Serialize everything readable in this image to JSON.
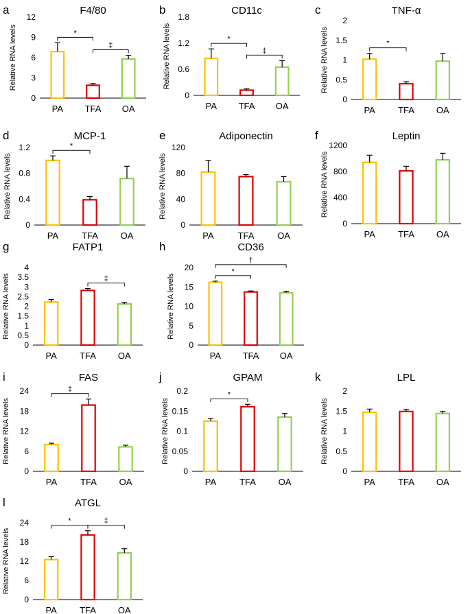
{
  "figure": {
    "ylabel": "Relative RNA levels"
  },
  "colors": {
    "PA": "#FFC000",
    "TFA": "#E00000",
    "OA": "#92D050",
    "axis": "#000000"
  },
  "chart_data": [
    {
      "letter": "a",
      "title": "F4/80",
      "type": "bar",
      "categories": [
        "PA",
        "TFA",
        "OA"
      ],
      "values": [
        6.9,
        1.9,
        5.8
      ],
      "errors": [
        1.3,
        0.25,
        0.55
      ],
      "ylim": [
        0,
        12
      ],
      "yticks": [
        "0",
        "3",
        "6",
        "9",
        "12"
      ],
      "ylabel": "Relative RNA levels",
      "annotations": [
        {
          "from": 0,
          "to": 1,
          "symbol": "*"
        },
        {
          "from": 1,
          "to": 2,
          "symbol": "‡"
        }
      ]
    },
    {
      "letter": "b",
      "title": "CD11c",
      "type": "bar",
      "categories": [
        "PA",
        "TFA",
        "OA"
      ],
      "values": [
        0.85,
        0.12,
        0.65
      ],
      "errors": [
        0.22,
        0.03,
        0.15
      ],
      "ylim": [
        0,
        1.8
      ],
      "yticks": [
        "0",
        "0.6",
        "1.2",
        "1.8"
      ],
      "ylabel": "Relative RNA levels",
      "annotations": [
        {
          "from": 0,
          "to": 1,
          "symbol": "*"
        },
        {
          "from": 1,
          "to": 2,
          "symbol": "‡"
        }
      ]
    },
    {
      "letter": "c",
      "title": "TNF-α",
      "type": "bar",
      "categories": [
        "PA",
        "TFA",
        "OA"
      ],
      "values": [
        1.02,
        0.4,
        0.97
      ],
      "errors": [
        0.15,
        0.05,
        0.2
      ],
      "ylim": [
        0,
        2
      ],
      "yticks": [
        "0",
        "0.5",
        "1",
        "1.5",
        "2"
      ],
      "ylabel": "Relative RNA levels",
      "annotations": [
        {
          "from": 0,
          "to": 1,
          "symbol": "*"
        }
      ]
    },
    {
      "letter": "d",
      "title": "MCP-1",
      "type": "bar",
      "categories": [
        "PA",
        "TFA",
        "OA"
      ],
      "values": [
        1.0,
        0.39,
        0.72
      ],
      "errors": [
        0.07,
        0.05,
        0.19
      ],
      "ylim": [
        0,
        1.2
      ],
      "yticks": [
        "0",
        "0.4",
        "0.8",
        "1.2"
      ],
      "ylabel": "Relative RNA levels",
      "annotations": [
        {
          "from": 0,
          "to": 1,
          "symbol": "*"
        }
      ]
    },
    {
      "letter": "e",
      "title": "Adiponectin",
      "type": "bar",
      "categories": [
        "PA",
        "TFA",
        "OA"
      ],
      "values": [
        82,
        75,
        67
      ],
      "errors": [
        18,
        3,
        8
      ],
      "ylim": [
        0,
        120
      ],
      "yticks": [
        "0",
        "40",
        "80",
        "120"
      ],
      "ylabel": "Relative RNA levels",
      "annotations": []
    },
    {
      "letter": "f",
      "title": "Leptin",
      "type": "bar",
      "categories": [
        "PA",
        "TFA",
        "OA"
      ],
      "values": [
        940,
        810,
        980
      ],
      "errors": [
        110,
        70,
        100
      ],
      "ylim": [
        0,
        1200
      ],
      "yticks": [
        "0",
        "400",
        "800",
        "1200"
      ],
      "ylabel": "Relative RNA levels",
      "annotations": []
    },
    {
      "letter": "g",
      "title": "FATP1",
      "type": "bar",
      "categories": [
        "PA",
        "TFA",
        "OA"
      ],
      "values": [
        2.22,
        2.82,
        2.12
      ],
      "errors": [
        0.13,
        0.1,
        0.08
      ],
      "ylim": [
        0,
        4
      ],
      "yticks": [
        "0",
        "0.5",
        "1",
        "1.5",
        "2",
        "2.5",
        "3",
        "3.5",
        "4"
      ],
      "ylabel": "Relative RNA levels",
      "annotations": [
        {
          "from": 1,
          "to": 2,
          "symbol": "‡"
        }
      ]
    },
    {
      "letter": "h",
      "title": "CD36",
      "type": "bar",
      "categories": [
        "PA",
        "TFA",
        "OA"
      ],
      "values": [
        16.2,
        13.7,
        13.5
      ],
      "errors": [
        0.3,
        0.25,
        0.35
      ],
      "ylim": [
        0,
        20
      ],
      "yticks": [
        "0",
        "5",
        "10",
        "15",
        "20"
      ],
      "ylabel": "Relative RNA levels",
      "annotations": [
        {
          "from": 0,
          "to": 1,
          "symbol": "*"
        },
        {
          "from": 0,
          "to": 2,
          "symbol": "†",
          "level": 2
        }
      ]
    },
    {
      "letter": "i",
      "title": "FAS",
      "type": "bar",
      "categories": [
        "PA",
        "TFA",
        "OA"
      ],
      "values": [
        8.0,
        19.8,
        7.3
      ],
      "errors": [
        0.4,
        1.8,
        0.5
      ],
      "ylim": [
        0,
        24
      ],
      "yticks": [
        "0",
        "6",
        "12",
        "18",
        "24"
      ],
      "ylabel": "Relative RNA levels",
      "annotations": [
        {
          "from": 0,
          "to": 1,
          "symbol": "‡"
        }
      ]
    },
    {
      "letter": "j",
      "title": "GPAM",
      "type": "bar",
      "categories": [
        "PA",
        "TFA",
        "OA"
      ],
      "values": [
        0.125,
        0.161,
        0.135
      ],
      "errors": [
        0.007,
        0.006,
        0.009
      ],
      "ylim": [
        0,
        0.2
      ],
      "yticks": [
        "0",
        "0.05",
        "0.1",
        "0.15",
        "0.2"
      ],
      "ylabel": "Relative RNA levels",
      "annotations": [
        {
          "from": 0,
          "to": 1,
          "symbol": "*"
        }
      ]
    },
    {
      "letter": "k",
      "title": "LPL",
      "type": "bar",
      "categories": [
        "PA",
        "TFA",
        "OA"
      ],
      "values": [
        1.47,
        1.49,
        1.44
      ],
      "errors": [
        0.08,
        0.05,
        0.05
      ],
      "ylim": [
        0,
        2
      ],
      "yticks": [
        "0",
        "0.5",
        "1",
        "1.5",
        "2"
      ],
      "ylabel": "Relative RNA levels",
      "annotations": []
    },
    {
      "letter": "l",
      "title": "ATGL",
      "type": "bar",
      "categories": [
        "PA",
        "TFA",
        "OA"
      ],
      "values": [
        12.5,
        20.2,
        14.6
      ],
      "errors": [
        0.9,
        1.3,
        1.3
      ],
      "ylim": [
        0,
        24
      ],
      "yticks": [
        "0",
        "6",
        "12",
        "18",
        "24"
      ],
      "ylabel": "Relative RNA levels",
      "annotations": [
        {
          "from": 0,
          "to": 1,
          "symbol": "*"
        },
        {
          "from": 1,
          "to": 2,
          "symbol": "‡"
        }
      ]
    }
  ]
}
